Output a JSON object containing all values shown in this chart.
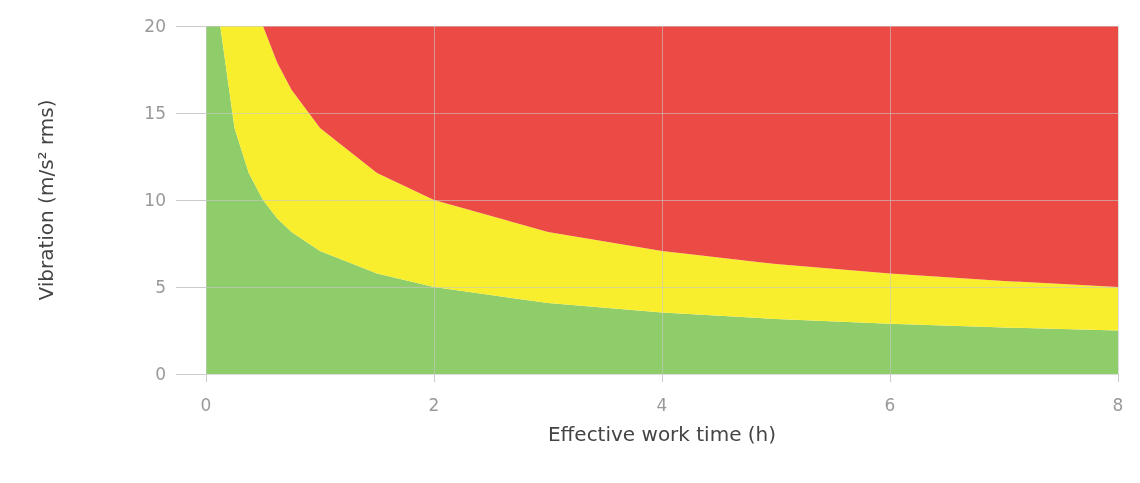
{
  "chart_data": {
    "type": "area",
    "stacked": true,
    "xlabel": "Effective work time (h)",
    "ylabel": "Vibration (m/s² rms)",
    "x": [
      0,
      0.125,
      0.25,
      0.375,
      0.5,
      0.625,
      0.75,
      1,
      1.5,
      2,
      3,
      4,
      5,
      6,
      7,
      8
    ],
    "series": [
      {
        "color": "#8fcc6a",
        "values": [
          20,
          20,
          14.14,
          11.55,
          10,
          8.94,
          8.16,
          7.07,
          5.77,
          5,
          4.08,
          3.54,
          3.16,
          2.89,
          2.67,
          2.5
        ]
      },
      {
        "color": "#f9ee2e",
        "values": [
          0,
          0,
          5.86,
          8.45,
          10,
          8.95,
          8.17,
          7.07,
          5.78,
          5,
          4.08,
          3.53,
          3.16,
          2.88,
          2.68,
          2.5
        ]
      },
      {
        "color": "#ec4a45",
        "values": [
          0,
          0,
          0,
          0,
          0,
          2.11,
          3.67,
          5.86,
          8.45,
          10,
          11.84,
          12.93,
          13.68,
          14.23,
          14.65,
          15
        ]
      }
    ],
    "xlim": [
      0,
      8
    ],
    "xticks": [
      0,
      2,
      4,
      6,
      8
    ],
    "ylim": [
      0,
      20
    ],
    "yticks": [
      0,
      5,
      10,
      15,
      20
    ],
    "grid": true
  }
}
